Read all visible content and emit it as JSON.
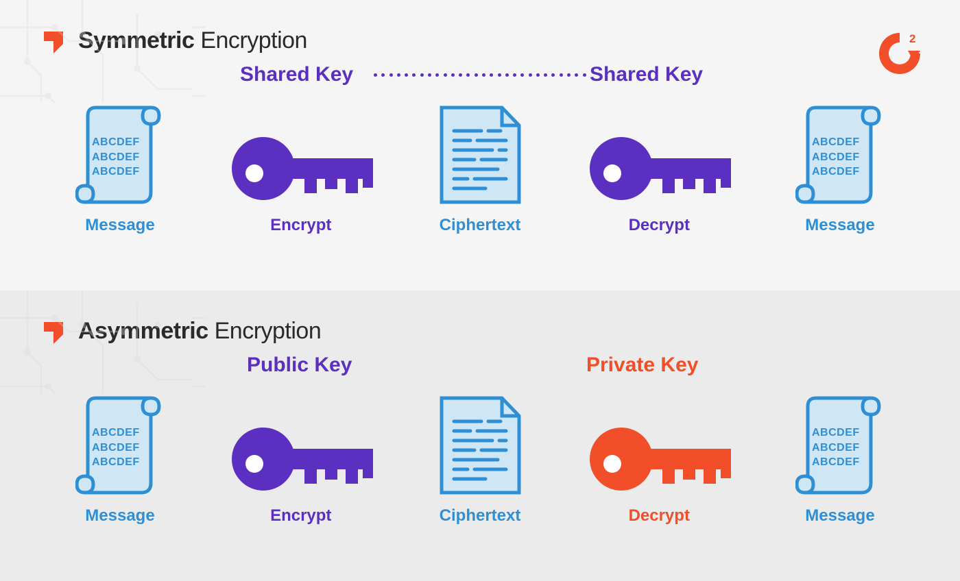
{
  "colors": {
    "purple": "#5b2fbf",
    "blue": "#2f8fd4",
    "orange": "#f24e29",
    "blue_fill": "#cfe6f5",
    "blue_stroke": "#2f8fd4",
    "text_dark": "#2a2a2a",
    "panel_top_bg": "#f5f5f5",
    "panel_bottom_bg": "#ebebeb",
    "circuit_line": "#d9d9d9"
  },
  "typography": {
    "heading_fontsize": 34,
    "keylabel_fontsize": 30,
    "itemlabel_fontsize": 24,
    "scrolltext_fontsize": 16
  },
  "symmetric": {
    "heading_bold": "Symmetric",
    "heading_light": " Encryption",
    "key_label_left": "Shared Key",
    "key_label_right": "Shared Key",
    "key_label_color": "#5b2fbf",
    "dotted_color": "#5b2fbf",
    "items": [
      {
        "name": "message-left",
        "type": "scroll",
        "label": "Message",
        "label_color": "#2f8fd4",
        "text": "ABCDEF\nABCDEF\nABCDEF"
      },
      {
        "name": "encrypt-key",
        "type": "key",
        "label": "Encrypt",
        "label_color": "#5b2fbf",
        "key_color": "#5b2fbf"
      },
      {
        "name": "ciphertext",
        "type": "doc",
        "label": "Ciphertext",
        "label_color": "#2f8fd4"
      },
      {
        "name": "decrypt-key",
        "type": "key",
        "label": "Decrypt",
        "label_color": "#5b2fbf",
        "key_color": "#5b2fbf"
      },
      {
        "name": "message-right",
        "type": "scroll",
        "label": "Message",
        "label_color": "#2f8fd4",
        "text": "ABCDEF\nABCDEF\nABCDEF"
      }
    ]
  },
  "asymmetric": {
    "heading_bold": "Asymmetric",
    "heading_light": " Encryption",
    "key_label_left": "Public Key",
    "key_label_left_color": "#5b2fbf",
    "key_label_right": "Private Key",
    "key_label_right_color": "#f24e29",
    "items": [
      {
        "name": "message-left",
        "type": "scroll",
        "label": "Message",
        "label_color": "#2f8fd4",
        "text": "ABCDEF\nABCDEF\nABCDEF"
      },
      {
        "name": "encrypt-key",
        "type": "key",
        "label": "Encrypt",
        "label_color": "#5b2fbf",
        "key_color": "#5b2fbf"
      },
      {
        "name": "ciphertext",
        "type": "doc",
        "label": "Ciphertext",
        "label_color": "#2f8fd4"
      },
      {
        "name": "decrypt-key",
        "type": "key",
        "label": "Decrypt",
        "label_color": "#f24e29",
        "key_color": "#f24e29"
      },
      {
        "name": "message-right",
        "type": "scroll",
        "label": "Message",
        "label_color": "#2f8fd4",
        "text": "ABCDEF\nABCDEF\nABCDEF"
      }
    ]
  }
}
